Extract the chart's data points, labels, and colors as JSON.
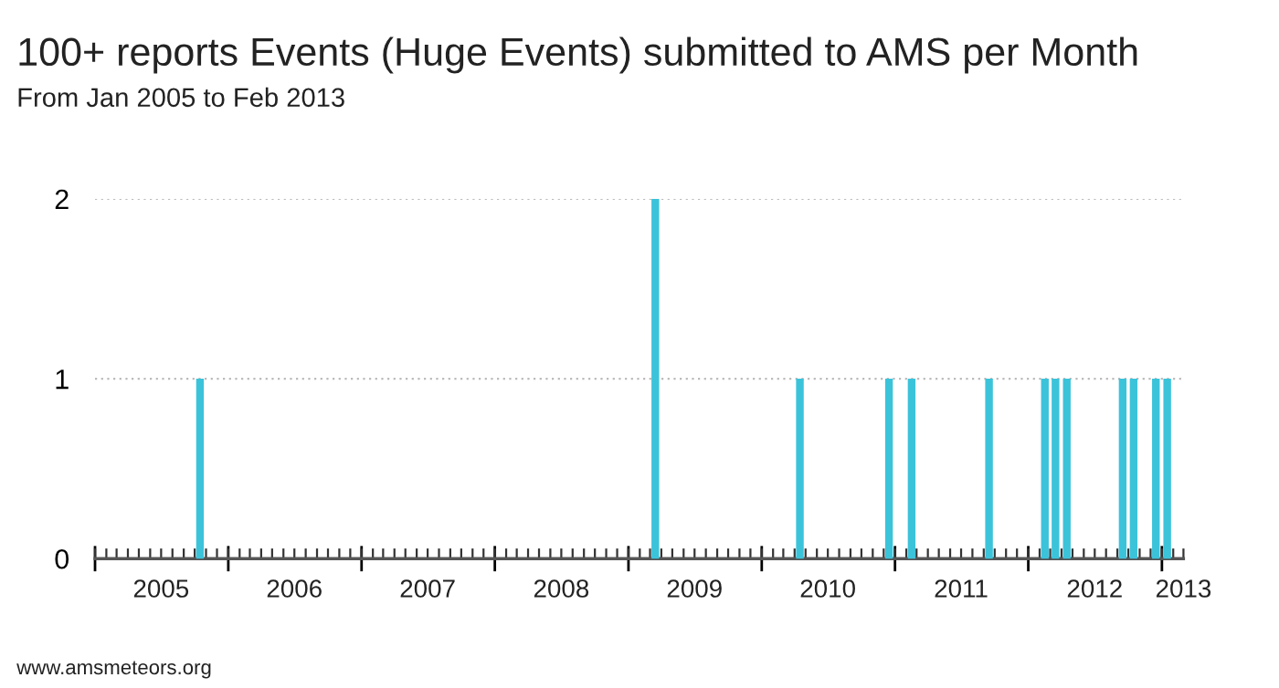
{
  "chart_data": {
    "type": "bar",
    "title": "100+ reports Events (Huge Events) submitted to AMS per Month",
    "subtitle": "From Jan 2005 to Feb 2013",
    "x": [
      "2005-10",
      "2009-03",
      "2010-04",
      "2010-12",
      "2011-02",
      "2011-09",
      "2012-02",
      "2012-03",
      "2012-04",
      "2012-09",
      "2012-10",
      "2012-12",
      "2013-01"
    ],
    "values": [
      1,
      2,
      1,
      1,
      1,
      1,
      1,
      1,
      1,
      1,
      1,
      1,
      1
    ],
    "color": "#3bc3da",
    "xlim": [
      "2005-01",
      "2013-03"
    ],
    "xticks": [
      {
        "value": "2005-01",
        "label": null
      },
      {
        "value": "2005-07",
        "label": "2005"
      },
      {
        "value": "2006-01",
        "label": null
      },
      {
        "value": "2006-07",
        "label": "2006"
      },
      {
        "value": "2007-01",
        "label": null
      },
      {
        "value": "2007-07",
        "label": "2007"
      },
      {
        "value": "2008-01",
        "label": null
      },
      {
        "value": "2008-07",
        "label": "2008"
      },
      {
        "value": "2009-01",
        "label": null
      },
      {
        "value": "2009-07",
        "label": "2009"
      },
      {
        "value": "2010-01",
        "label": null
      },
      {
        "value": "2010-07",
        "label": "2010"
      },
      {
        "value": "2011-01",
        "label": null
      },
      {
        "value": "2011-07",
        "label": "2011"
      },
      {
        "value": "2012-01",
        "label": null
      },
      {
        "value": "2012-07",
        "label": "2012"
      },
      {
        "value": "2013-01",
        "label": null
      },
      {
        "value": "2013-03",
        "label": "2013"
      }
    ],
    "ylim": [
      0,
      2
    ],
    "yticks": [
      0,
      1,
      2
    ],
    "grid": "y",
    "annotations": [
      "www.amsmeteors.org"
    ]
  }
}
